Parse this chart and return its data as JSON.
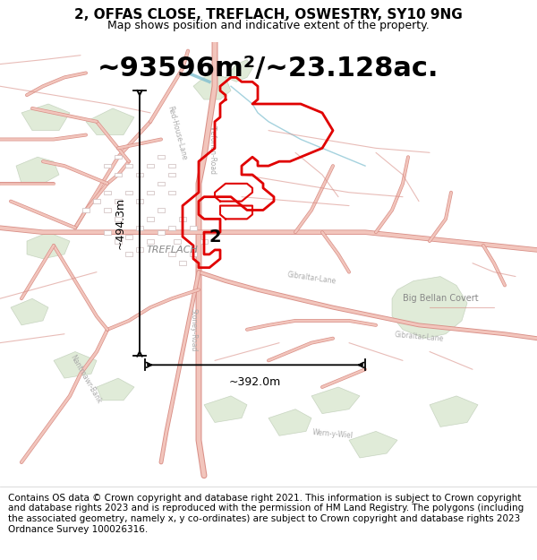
{
  "title_line1": "2, OFFAS CLOSE, TREFLACH, OSWESTRY, SY10 9NG",
  "title_line2": "Map shows position and indicative extent of the property.",
  "area_text": "~93596m²/~23.128ac.",
  "width_label": "~392.0m",
  "height_label": "~494.3m",
  "plot_number": "2",
  "village_label": "TREFLACH",
  "place_label": "Big Bellan Covert",
  "footer_text": "Contains OS data © Crown copyright and database right 2021. This information is subject to Crown copyright and database rights 2023 and is reproduced with the permission of HM Land Registry. The polygons (including the associated geometry, namely x, y co-ordinates) are subject to Crown copyright and database rights 2023 Ordnance Survey 100026316.",
  "map_bg": "#f8f4f0",
  "road_color": "#f2c5bc",
  "road_edge": "#d99088",
  "green_color": "#c8dbb8",
  "green_edge": "#a8bba0",
  "property_color": "#e00000",
  "dim_color": "#000000",
  "title_fontsize": 11,
  "subtitle_fontsize": 9,
  "area_fontsize": 22,
  "footer_fontsize": 7.5,
  "label_color": "#999999",
  "road_label_color": "#aaaaaa"
}
